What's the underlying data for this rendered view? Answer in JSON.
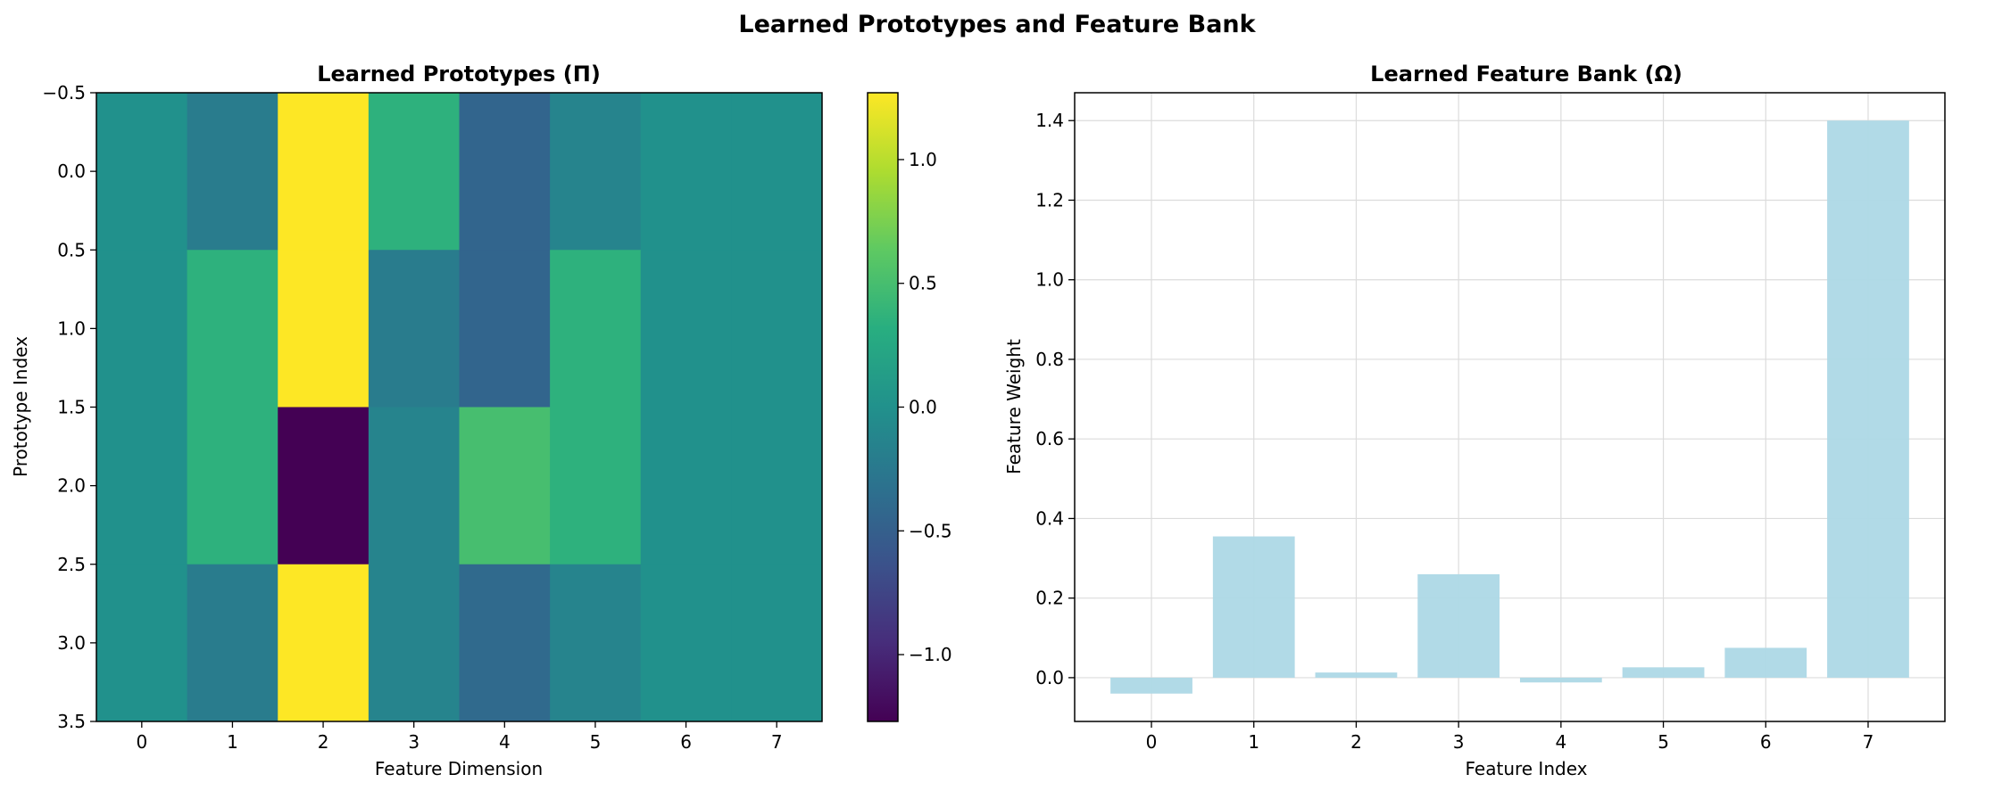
{
  "figure": {
    "title": "Learned Prototypes and Feature Bank"
  },
  "chart_data": [
    {
      "type": "heatmap",
      "title": "Learned Prototypes (Π)",
      "xlabel": "Feature Dimension",
      "ylabel": "Prototype Index",
      "colormap": "viridis",
      "vmin": -1.27,
      "vmax": 1.27,
      "x_ticks": [
        "0",
        "1",
        "2",
        "3",
        "4",
        "5",
        "6",
        "7"
      ],
      "y_ticks": [
        "−0.5",
        "0.0",
        "0.5",
        "1.0",
        "1.5",
        "2.0",
        "2.5",
        "3.0",
        "3.5"
      ],
      "colorbar_ticks": [
        "1.0",
        "0.5",
        "0.0",
        "−0.5",
        "−1.0"
      ],
      "colorbar_tick_values": [
        1.0,
        0.5,
        0.0,
        -0.5,
        -1.0
      ],
      "values": [
        [
          0.0,
          -0.22,
          1.27,
          0.35,
          -0.45,
          -0.13,
          0.0,
          0.0
        ],
        [
          0.0,
          0.35,
          1.27,
          -0.22,
          -0.45,
          0.35,
          0.0,
          0.0
        ],
        [
          0.0,
          0.35,
          -1.27,
          -0.13,
          0.5,
          0.35,
          0.0,
          0.0
        ],
        [
          0.0,
          -0.22,
          1.27,
          -0.13,
          -0.4,
          -0.13,
          0.0,
          0.0
        ]
      ]
    },
    {
      "type": "bar",
      "title": "Learned Feature Bank (Ω)",
      "xlabel": "Feature Index",
      "ylabel": "Feature Weight",
      "categories": [
        "0",
        "1",
        "2",
        "3",
        "4",
        "5",
        "6",
        "7"
      ],
      "values": [
        -0.04,
        0.355,
        0.013,
        0.26,
        -0.012,
        0.026,
        0.075,
        1.4
      ],
      "ylim": [
        -0.11,
        1.47
      ],
      "y_ticks": [
        "0.0",
        "0.2",
        "0.4",
        "0.6",
        "0.8",
        "1.0",
        "1.2",
        "1.4"
      ],
      "y_tick_values": [
        0.0,
        0.2,
        0.4,
        0.6,
        0.8,
        1.0,
        1.2,
        1.4
      ],
      "color": "#add8e6",
      "grid": true
    }
  ]
}
